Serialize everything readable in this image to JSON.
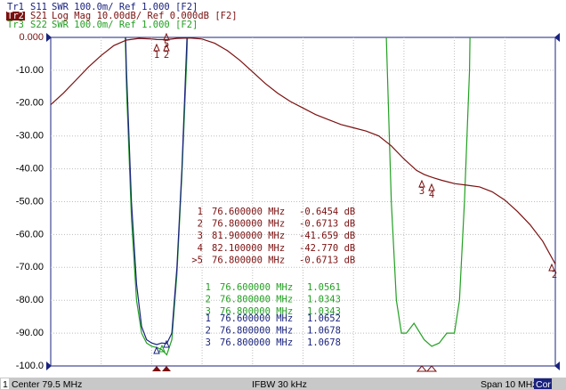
{
  "chart_data": {
    "type": "line",
    "grid": true,
    "xlim": [
      74.5,
      84.5
    ],
    "ylim": [
      -100,
      0
    ],
    "y2lim": [
      1,
      2
    ],
    "yticks": [
      {
        "value": 0,
        "label": "0.000"
      },
      {
        "value": -10,
        "label": "-10.00"
      },
      {
        "value": -20,
        "label": "-20.00"
      },
      {
        "value": -30,
        "label": "-30.00"
      },
      {
        "value": -40,
        "label": "-40.00"
      },
      {
        "value": -50,
        "label": "-50.00"
      },
      {
        "value": -60,
        "label": "-60.00"
      },
      {
        "value": -70,
        "label": "-70.00"
      },
      {
        "value": -80,
        "label": "-80.00"
      },
      {
        "value": -90,
        "label": "-90.00"
      },
      {
        "value": -100,
        "label": "-100.0"
      }
    ],
    "series": [
      {
        "trace": "Tr1",
        "name": "S11",
        "scale": "SWR 100.0m/ Ref 1.000 [F2]",
        "color": "#1a237e",
        "axis": "y2",
        "x": [
          75.9,
          76.0,
          76.1,
          76.2,
          76.3,
          76.4,
          76.5,
          76.6,
          76.7,
          76.8,
          76.9,
          77.0,
          77.1,
          77.2,
          77.3
        ],
        "values": [
          2.5,
          1.9,
          1.5,
          1.25,
          1.12,
          1.08,
          1.07,
          1.065,
          1.07,
          1.068,
          1.1,
          1.3,
          1.6,
          2.0,
          2.5
        ]
      },
      {
        "trace": "Tr2",
        "name": "S21",
        "scale": "Log Mag 10.00dB/ Ref 0.000dB [F2]",
        "color": "#7b1010",
        "x": [
          74.5,
          74.75,
          75,
          75.25,
          75.5,
          75.75,
          76,
          76.25,
          76.5,
          76.6,
          76.8,
          77,
          77.25,
          77.5,
          77.75,
          78,
          78.25,
          78.5,
          78.75,
          79,
          79.25,
          79.5,
          79.75,
          80,
          80.25,
          80.5,
          80.75,
          81,
          81.25,
          81.5,
          81.75,
          81.9,
          82,
          82.1,
          82.25,
          82.5,
          82.75,
          83,
          83.25,
          83.5,
          83.75,
          84,
          84.25,
          84.5
        ],
        "values": [
          -20.5,
          -17,
          -13,
          -9,
          -5.5,
          -2.5,
          -0.8,
          -0.3,
          -0.5,
          -0.65,
          -0.67,
          -0.3,
          -0.2,
          -0.5,
          -1.8,
          -4,
          -7,
          -10.5,
          -14,
          -17,
          -19.5,
          -21.5,
          -23.5,
          -25,
          -26.5,
          -27.5,
          -28.5,
          -30,
          -33,
          -37,
          -40.5,
          -41.7,
          -42.3,
          -42.8,
          -43.5,
          -44.5,
          -45,
          -45.5,
          -47,
          -49.5,
          -53,
          -57,
          -62,
          -69
        ]
      },
      {
        "trace": "Tr3",
        "name": "S22",
        "scale": "SWR 100.0m/ Ref 1.000 [F2]",
        "color": "#22a022",
        "axis": "y2",
        "x": [
          75.9,
          76.0,
          76.1,
          76.2,
          76.3,
          76.4,
          76.5,
          76.6,
          76.7,
          76.8,
          76.9,
          77.0,
          77.1,
          77.2,
          77.3,
          81.0,
          81.15,
          81.25,
          81.35,
          81.45,
          81.55,
          81.7,
          81.9,
          82.05,
          82.2,
          82.35,
          82.5,
          82.6,
          82.7,
          82.8,
          82.9
        ],
        "values": [
          2.5,
          1.85,
          1.45,
          1.2,
          1.1,
          1.07,
          1.06,
          1.056,
          1.05,
          1.034,
          1.08,
          1.28,
          1.58,
          1.95,
          2.5,
          3,
          2.0,
          1.5,
          1.2,
          1.1,
          1.1,
          1.13,
          1.08,
          1.06,
          1.07,
          1.1,
          1.1,
          1.2,
          1.5,
          1.9,
          3
        ]
      }
    ],
    "marker_tables": [
      {
        "series": 1,
        "rows": [
          [
            "1",
            "76.600000 MHz",
            "-0.6454 dB"
          ],
          [
            "2",
            "76.800000 MHz",
            "-0.6713 dB"
          ],
          [
            "3",
            "81.900000 MHz",
            "-41.659 dB"
          ],
          [
            "4",
            "82.100000 MHz",
            "-42.770 dB"
          ],
          [
            ">5",
            "76.800000 MHz",
            "-0.6713 dB"
          ]
        ]
      },
      {
        "series": 2,
        "rows": [
          [
            "1",
            "76.600000 MHz",
            "1.0561"
          ],
          [
            "2",
            "76.800000 MHz",
            "1.0343"
          ],
          [
            "3",
            "76.800000 MHz",
            "1.0343"
          ]
        ]
      },
      {
        "series": 0,
        "rows": [
          [
            "1",
            "76.600000 MHz",
            "1.0652"
          ],
          [
            "2",
            "76.800000 MHz",
            "1.0678"
          ],
          [
            "3",
            "76.800000 MHz",
            "1.0678"
          ]
        ]
      }
    ],
    "marker_flags": [
      "1",
      "2",
      "5",
      "3",
      "4",
      "2"
    ],
    "status": [
      "1",
      "Center 79.5 MHz",
      "IFBW 30 kHz",
      "Span 10 MHz",
      "Cor"
    ]
  }
}
